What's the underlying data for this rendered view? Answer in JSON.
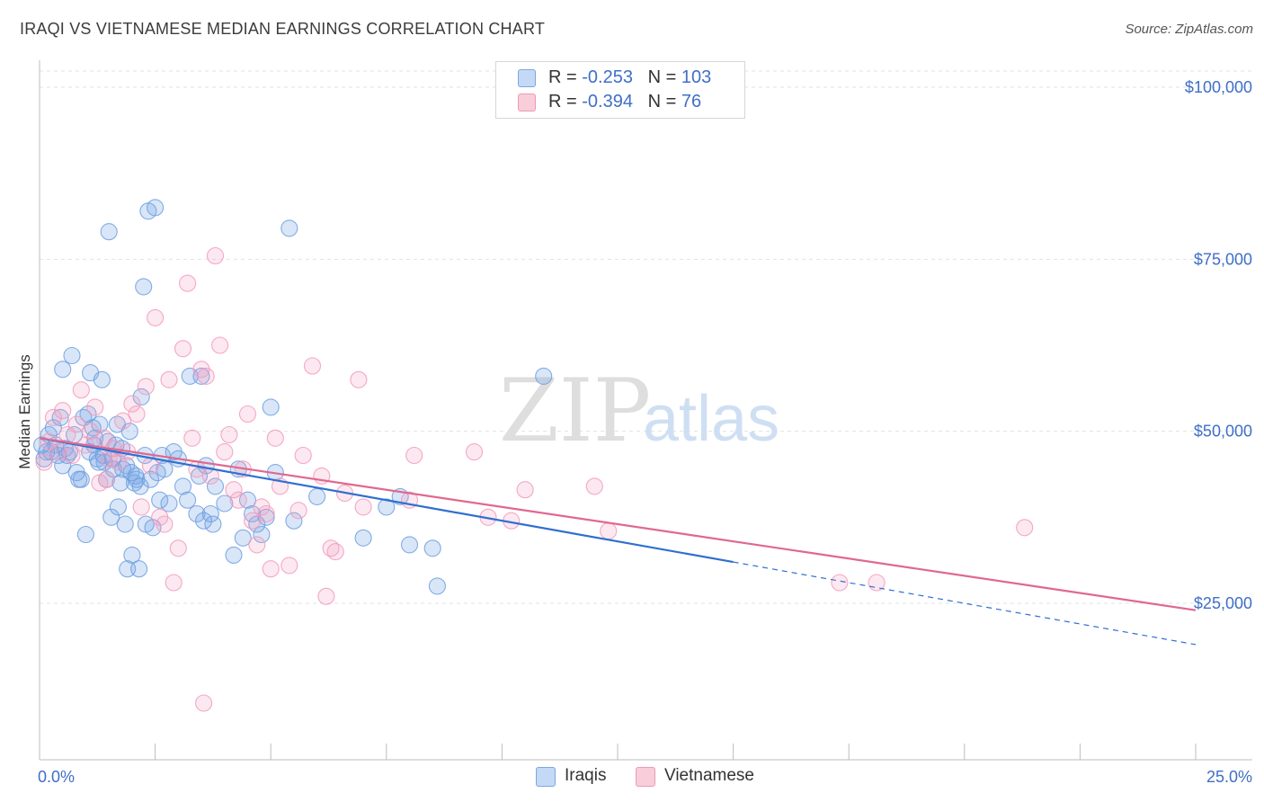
{
  "header": {
    "title": "IRAQI VS VIETNAMESE MEDIAN EARNINGS CORRELATION CHART",
    "source": "Source: ZipAtlas.com"
  },
  "watermark": {
    "zip": "ZIP",
    "atlas": "atlas"
  },
  "legend": {
    "rows": [
      {
        "r_label": "R = ",
        "r_value": "-0.253",
        "n_label": "N = ",
        "n_value": "103",
        "color": "#a8c6f0"
      },
      {
        "r_label": "R = ",
        "r_value": "-0.394",
        "n_label": "N = ",
        "n_value": "76",
        "color": "#f5b8cb"
      }
    ]
  },
  "bottom_legend": [
    {
      "label": "Iraqis",
      "color": "#a8c6f0"
    },
    {
      "label": "Vietnamese",
      "color": "#f5b8cb"
    }
  ],
  "chart_data": {
    "type": "scatter",
    "xlabel": "",
    "ylabel": "Median Earnings",
    "xlim": [
      0,
      25
    ],
    "ylim": [
      0,
      105000
    ],
    "x_tick_labels": [
      "0.0%",
      "25.0%"
    ],
    "y_ticks": [
      25000,
      50000,
      75000,
      100000
    ],
    "y_tick_labels": [
      "$25,000",
      "$50,000",
      "$75,000",
      "$100,000"
    ],
    "grid": true,
    "series": [
      {
        "name": "Iraqis",
        "color": "#6f9fe0",
        "line_color": "#2f6fd0",
        "trend": {
          "x0": 0,
          "y0": 49000,
          "x1": 15,
          "y1": 31000,
          "dash_to_x": 25,
          "dash_to_y": 19000
        },
        "points": [
          [
            0.1,
            46000
          ],
          [
            0.2,
            49500
          ],
          [
            0.25,
            47000
          ],
          [
            0.3,
            50500
          ],
          [
            0.35,
            48000
          ],
          [
            0.4,
            46500
          ],
          [
            0.45,
            52000
          ],
          [
            0.5,
            45000
          ],
          [
            0.55,
            47500
          ],
          [
            0.6,
            46500
          ],
          [
            0.7,
            61000
          ],
          [
            0.5,
            59000
          ],
          [
            0.8,
            44000
          ],
          [
            0.9,
            43000
          ],
          [
            1.0,
            35000
          ],
          [
            1.05,
            52500
          ],
          [
            1.1,
            58500
          ],
          [
            1.15,
            50500
          ],
          [
            1.2,
            49000
          ],
          [
            1.25,
            46000
          ],
          [
            1.3,
            51000
          ],
          [
            1.35,
            57500
          ],
          [
            1.4,
            45500
          ],
          [
            1.45,
            43000
          ],
          [
            1.5,
            79000
          ],
          [
            1.55,
            37500
          ],
          [
            1.6,
            44500
          ],
          [
            1.65,
            48000
          ],
          [
            1.7,
            39000
          ],
          [
            1.75,
            42500
          ],
          [
            1.8,
            44500
          ],
          [
            1.85,
            36500
          ],
          [
            1.9,
            30000
          ],
          [
            1.95,
            50000
          ],
          [
            2.0,
            32000
          ],
          [
            2.05,
            42500
          ],
          [
            2.1,
            43000
          ],
          [
            2.15,
            30000
          ],
          [
            2.2,
            55000
          ],
          [
            2.25,
            71000
          ],
          [
            2.3,
            36500
          ],
          [
            2.35,
            82000
          ],
          [
            2.4,
            43000
          ],
          [
            2.45,
            36000
          ],
          [
            2.5,
            82500
          ],
          [
            2.55,
            44000
          ],
          [
            2.6,
            40000
          ],
          [
            2.65,
            46500
          ],
          [
            2.7,
            44500
          ],
          [
            2.8,
            39500
          ],
          [
            2.9,
            47000
          ],
          [
            3.0,
            46000
          ],
          [
            3.1,
            42000
          ],
          [
            3.2,
            40000
          ],
          [
            3.25,
            58000
          ],
          [
            3.4,
            38000
          ],
          [
            3.45,
            43500
          ],
          [
            3.5,
            58000
          ],
          [
            3.55,
            37000
          ],
          [
            3.6,
            45000
          ],
          [
            3.7,
            38000
          ],
          [
            3.75,
            36500
          ],
          [
            3.8,
            42000
          ],
          [
            4.0,
            39500
          ],
          [
            4.2,
            32000
          ],
          [
            4.3,
            44500
          ],
          [
            4.4,
            34500
          ],
          [
            4.5,
            40000
          ],
          [
            4.6,
            38000
          ],
          [
            4.7,
            36500
          ],
          [
            4.8,
            35000
          ],
          [
            4.9,
            37500
          ],
          [
            5.0,
            53500
          ],
          [
            5.1,
            44000
          ],
          [
            5.4,
            79500
          ],
          [
            5.5,
            37000
          ],
          [
            6.0,
            40500
          ],
          [
            7.0,
            34500
          ],
          [
            7.5,
            39000
          ],
          [
            7.8,
            40500
          ],
          [
            8.0,
            33500
          ],
          [
            8.5,
            33000
          ],
          [
            8.6,
            27500
          ],
          [
            10.9,
            58000
          ],
          [
            0.15,
            47000
          ],
          [
            0.65,
            47000
          ],
          [
            0.75,
            49500
          ],
          [
            0.85,
            43000
          ],
          [
            0.95,
            52000
          ],
          [
            1.08,
            47000
          ],
          [
            1.18,
            48000
          ],
          [
            1.28,
            45500
          ],
          [
            1.38,
            46500
          ],
          [
            1.48,
            48500
          ],
          [
            1.58,
            46000
          ],
          [
            1.68,
            51000
          ],
          [
            1.78,
            47500
          ],
          [
            1.88,
            45000
          ],
          [
            1.98,
            44000
          ],
          [
            2.08,
            43500
          ],
          [
            2.18,
            42000
          ],
          [
            2.28,
            46500
          ],
          [
            0.05,
            48000
          ]
        ]
      },
      {
        "name": "Vietnamese",
        "color": "#f39abb",
        "line_color": "#e0688f",
        "trend": {
          "x0": 0,
          "y0": 49000,
          "x1": 25,
          "y1": 24000
        },
        "points": [
          [
            0.1,
            45500
          ],
          [
            0.2,
            48500
          ],
          [
            0.3,
            52000
          ],
          [
            0.4,
            47000
          ],
          [
            0.5,
            53000
          ],
          [
            0.6,
            49500
          ],
          [
            0.7,
            46500
          ],
          [
            0.8,
            51000
          ],
          [
            0.9,
            56000
          ],
          [
            1.0,
            48000
          ],
          [
            1.1,
            50000
          ],
          [
            1.2,
            53500
          ],
          [
            1.3,
            42500
          ],
          [
            1.4,
            49000
          ],
          [
            1.5,
            46000
          ],
          [
            1.6,
            47500
          ],
          [
            1.7,
            45500
          ],
          [
            1.8,
            51500
          ],
          [
            1.9,
            47000
          ],
          [
            2.0,
            54000
          ],
          [
            2.1,
            52500
          ],
          [
            2.2,
            39000
          ],
          [
            2.3,
            56500
          ],
          [
            2.4,
            45000
          ],
          [
            2.5,
            66500
          ],
          [
            2.6,
            37500
          ],
          [
            2.7,
            36500
          ],
          [
            2.8,
            57500
          ],
          [
            2.9,
            28000
          ],
          [
            3.0,
            33000
          ],
          [
            3.1,
            62000
          ],
          [
            3.2,
            71500
          ],
          [
            3.3,
            49000
          ],
          [
            3.4,
            44500
          ],
          [
            3.5,
            59000
          ],
          [
            3.6,
            58000
          ],
          [
            3.7,
            43500
          ],
          [
            3.8,
            75500
          ],
          [
            3.9,
            62500
          ],
          [
            4.0,
            47000
          ],
          [
            4.1,
            49500
          ],
          [
            4.2,
            41500
          ],
          [
            4.3,
            40000
          ],
          [
            4.4,
            44500
          ],
          [
            4.5,
            52500
          ],
          [
            4.6,
            37000
          ],
          [
            4.7,
            33500
          ],
          [
            4.8,
            39000
          ],
          [
            4.9,
            38000
          ],
          [
            5.0,
            30000
          ],
          [
            5.1,
            49000
          ],
          [
            5.2,
            42000
          ],
          [
            5.4,
            30500
          ],
          [
            5.6,
            38500
          ],
          [
            5.7,
            46500
          ],
          [
            5.9,
            59500
          ],
          [
            6.1,
            43500
          ],
          [
            6.2,
            26000
          ],
          [
            6.3,
            33000
          ],
          [
            6.4,
            32500
          ],
          [
            6.6,
            41000
          ],
          [
            6.9,
            57500
          ],
          [
            7.0,
            39000
          ],
          [
            8.0,
            40000
          ],
          [
            8.1,
            46500
          ],
          [
            9.4,
            47000
          ],
          [
            9.7,
            37500
          ],
          [
            10.2,
            37000
          ],
          [
            10.5,
            41500
          ],
          [
            12.0,
            42000
          ],
          [
            12.3,
            35500
          ],
          [
            17.3,
            28000
          ],
          [
            18.1,
            28000
          ],
          [
            21.3,
            36000
          ],
          [
            3.55,
            10500
          ],
          [
            1.45,
            43000
          ]
        ]
      }
    ]
  }
}
